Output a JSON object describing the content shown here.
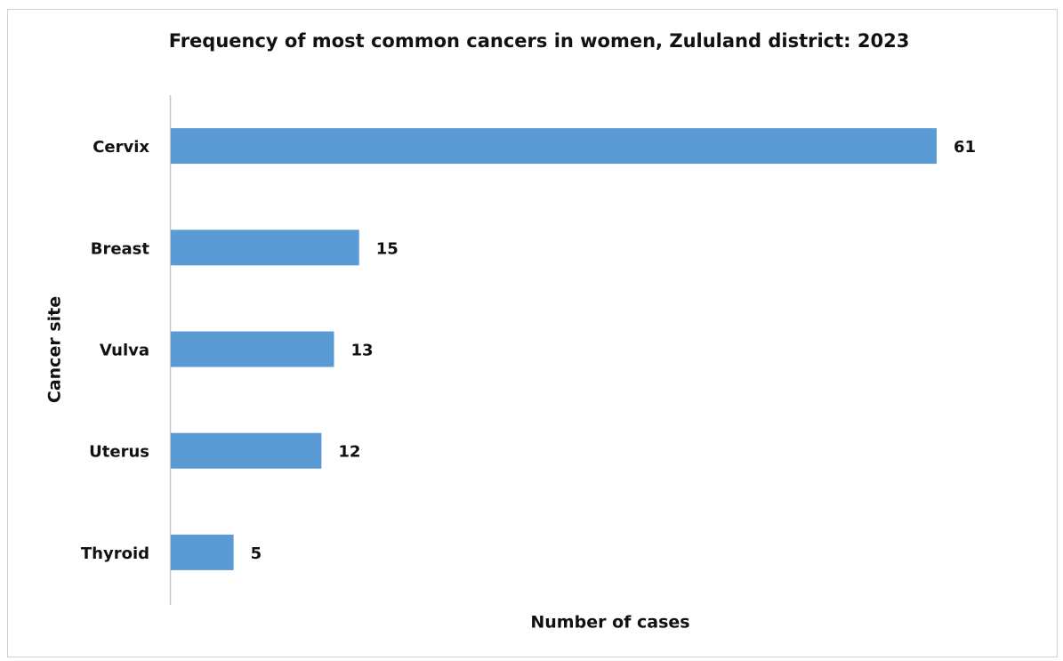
{
  "chart_data": {
    "type": "bar",
    "orientation": "horizontal",
    "title": "Frequency of most common cancers in women, Zululand district: 2023",
    "x_label": "Number of cases",
    "y_label": "Cancer site",
    "categories": [
      "Cervix",
      "Breast",
      "Vulva",
      "Uterus",
      "Thyroid"
    ],
    "values": [
      61,
      15,
      13,
      12,
      5
    ],
    "color": "#5b9bd5"
  }
}
